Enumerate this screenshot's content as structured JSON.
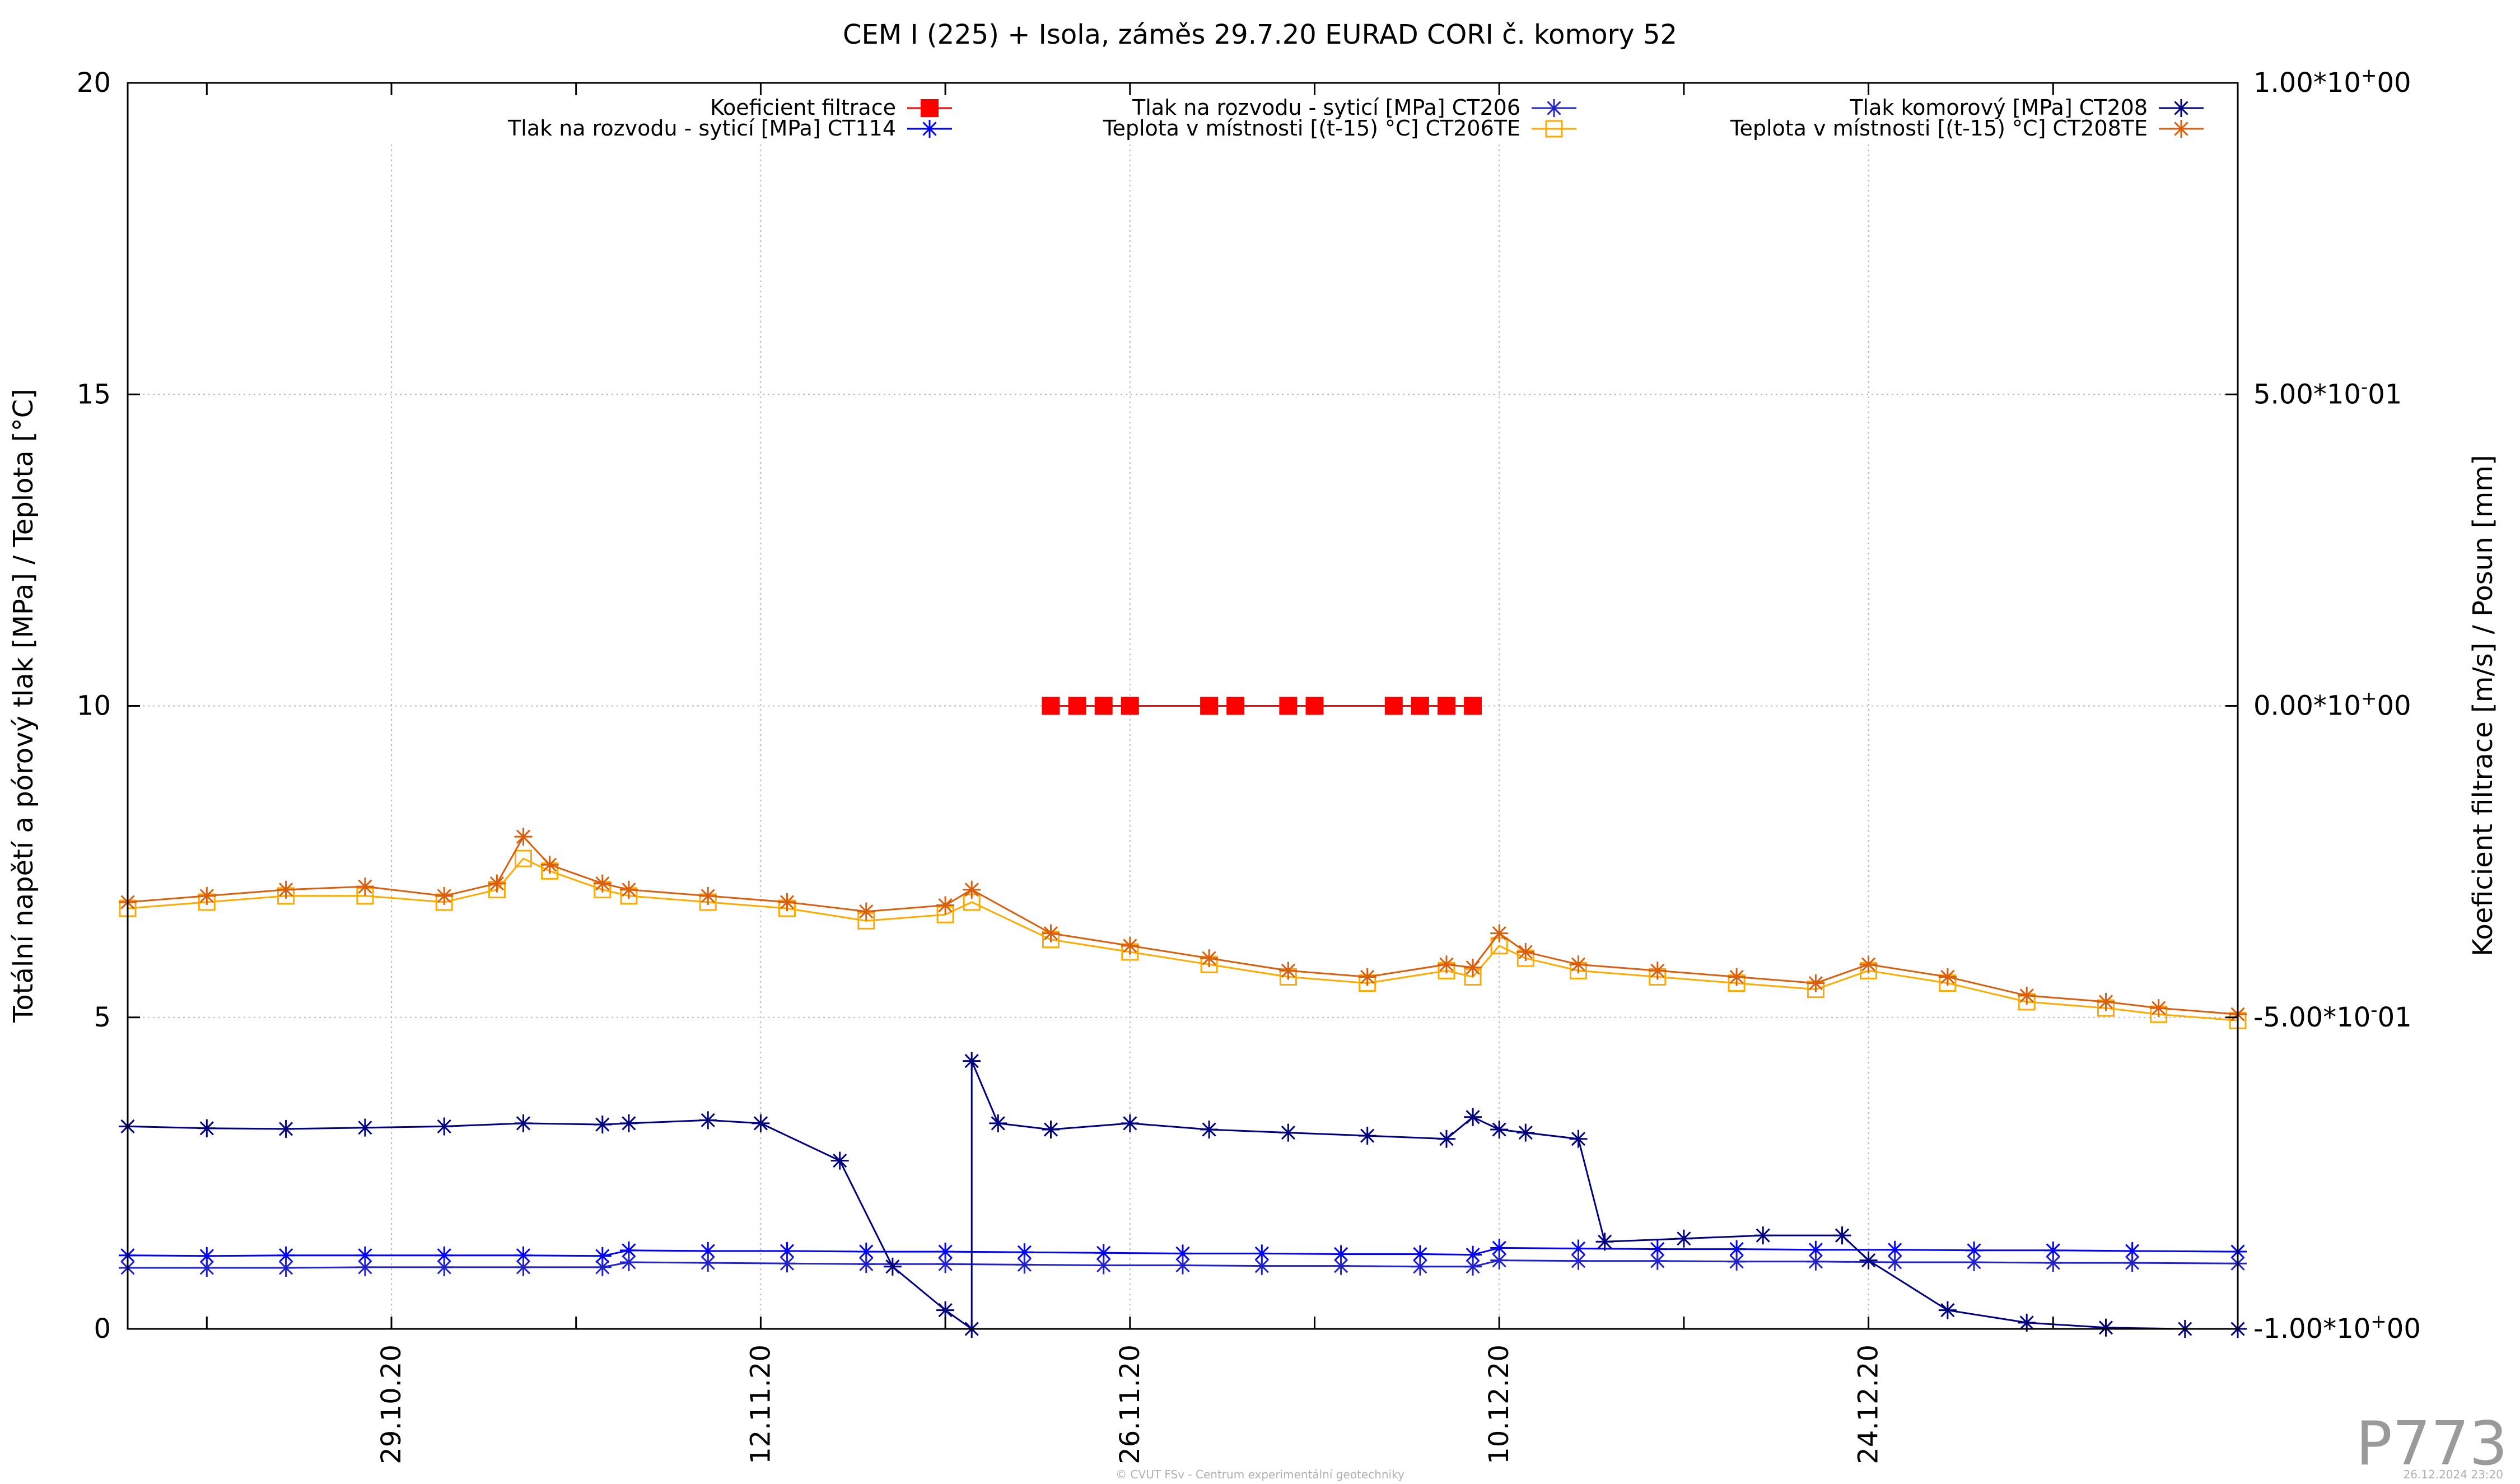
{
  "chart_data": {
    "type": "line",
    "title": "CEM I (225) + Isola, záměs 29.7.20 EURAD CORI č. komory 52",
    "ylabel": "Totální napětí a pórový tlak [MPa] / Teplota [°C]",
    "y2label": "Koeficient filtrace [m/s] / Posun [mm]",
    "ylim": [
      0,
      20
    ],
    "y2lim": [
      -1.0,
      1.0
    ],
    "xlim": [
      "2020-10-19",
      "2021-01-07"
    ],
    "grid": true,
    "legend_position": "top",
    "y_ticks": [
      "0",
      "5",
      "10",
      "15",
      "20"
    ],
    "y2_ticks": [
      {
        "mant": "-1.00*10",
        "exp": "+",
        "suf": "00"
      },
      {
        "mant": "-5.00*10",
        "exp": "-",
        "suf": "01"
      },
      {
        "mant": "0.00*10",
        "exp": "+",
        "suf": "00"
      },
      {
        "mant": "5.00*10",
        "exp": "-",
        "suf": "01"
      },
      {
        "mant": "1.00*10",
        "exp": "+",
        "suf": "00"
      }
    ],
    "x_ticks": [
      "29.10.20",
      "12.11.20",
      "26.11.20",
      "10.12.20",
      "24.12.20"
    ],
    "x_tick_dates": [
      "2020-10-29",
      "2020-11-12",
      "2020-11-26",
      "2020-12-10",
      "2020-12-24"
    ],
    "series": [
      {
        "name": "Koeficient filtrace",
        "axis": "y2",
        "color": "#ff0000",
        "marker": "square",
        "x": [
          "2020-11-23",
          "2020-11-24",
          "2020-11-25",
          "2020-11-26",
          "2020-11-29",
          "2020-11-30",
          "2020-12-02",
          "2020-12-03",
          "2020-12-06",
          "2020-12-07",
          "2020-12-08",
          "2020-12-09"
        ],
        "y": [
          0,
          0,
          0,
          0,
          0,
          0,
          0,
          0,
          0,
          0,
          0,
          0
        ]
      },
      {
        "name": "Tlak na rozvodu - syticí [MPa] CT114",
        "axis": "y",
        "color": "#0000ff",
        "marker": "star",
        "x": [
          "2020-10-19",
          "2020-10-22",
          "2020-10-25",
          "2020-10-28",
          "2020-10-31",
          "2020-11-03",
          "2020-11-06",
          "2020-11-07",
          "2020-11-10",
          "2020-11-13",
          "2020-11-16",
          "2020-11-19",
          "2020-11-22",
          "2020-11-25",
          "2020-11-28",
          "2020-12-01",
          "2020-12-04",
          "2020-12-07",
          "2020-12-09",
          "2020-12-10",
          "2020-12-13",
          "2020-12-16",
          "2020-12-19",
          "2020-12-22",
          "2020-12-25",
          "2020-12-28",
          "2020-12-31",
          "2021-01-03",
          "2021-01-07"
        ],
        "y": [
          1.18,
          1.17,
          1.18,
          1.18,
          1.18,
          1.18,
          1.17,
          1.26,
          1.25,
          1.25,
          1.24,
          1.24,
          1.23,
          1.22,
          1.21,
          1.21,
          1.2,
          1.2,
          1.19,
          1.3,
          1.29,
          1.28,
          1.28,
          1.27,
          1.27,
          1.26,
          1.26,
          1.25,
          1.24
        ]
      },
      {
        "name": "Tlak na rozvodu - syticí [MPa] CT206",
        "axis": "y",
        "color": "#2222cc",
        "marker": "star",
        "x": [
          "2020-10-19",
          "2020-10-22",
          "2020-10-25",
          "2020-10-28",
          "2020-10-31",
          "2020-11-03",
          "2020-11-06",
          "2020-11-07",
          "2020-11-10",
          "2020-11-13",
          "2020-11-16",
          "2020-11-19",
          "2020-11-22",
          "2020-11-25",
          "2020-11-28",
          "2020-12-01",
          "2020-12-04",
          "2020-12-07",
          "2020-12-09",
          "2020-12-10",
          "2020-12-13",
          "2020-12-16",
          "2020-12-19",
          "2020-12-22",
          "2020-12-25",
          "2020-12-28",
          "2020-12-31",
          "2021-01-03",
          "2021-01-07"
        ],
        "y": [
          0.98,
          0.98,
          0.98,
          0.99,
          0.99,
          0.99,
          0.99,
          1.07,
          1.06,
          1.05,
          1.04,
          1.04,
          1.03,
          1.02,
          1.02,
          1.01,
          1.01,
          1.0,
          1.0,
          1.1,
          1.09,
          1.09,
          1.08,
          1.08,
          1.07,
          1.07,
          1.06,
          1.06,
          1.05
        ]
      },
      {
        "name": "Teplota v místnosti [(t-15) °C] CT206TE",
        "axis": "y",
        "color": "#ffaa00",
        "marker": "square-open",
        "x": [
          "2020-10-19",
          "2020-10-22",
          "2020-10-25",
          "2020-10-28",
          "2020-10-31",
          "2020-11-02",
          "2020-11-03",
          "2020-11-04",
          "2020-11-06",
          "2020-11-07",
          "2020-11-10",
          "2020-11-13",
          "2020-11-16",
          "2020-11-19",
          "2020-11-20",
          "2020-11-23",
          "2020-11-26",
          "2020-11-29",
          "2020-12-02",
          "2020-12-05",
          "2020-12-08",
          "2020-12-09",
          "2020-12-10",
          "2020-12-11",
          "2020-12-13",
          "2020-12-16",
          "2020-12-19",
          "2020-12-22",
          "2020-12-24",
          "2020-12-27",
          "2020-12-30",
          "2021-01-02",
          "2021-01-04",
          "2021-01-07"
        ],
        "y": [
          6.75,
          6.85,
          6.95,
          6.95,
          6.85,
          7.05,
          7.55,
          7.35,
          7.05,
          6.95,
          6.85,
          6.75,
          6.55,
          6.65,
          6.85,
          6.25,
          6.05,
          5.85,
          5.65,
          5.55,
          5.75,
          5.65,
          6.15,
          5.95,
          5.75,
          5.65,
          5.55,
          5.45,
          5.75,
          5.55,
          5.25,
          5.15,
          5.05,
          4.95
        ]
      },
      {
        "name": "Tlak komorový [MPa] CT208",
        "axis": "y",
        "color": "#000080",
        "marker": "star",
        "x": [
          "2020-10-19",
          "2020-10-22",
          "2020-10-25",
          "2020-10-28",
          "2020-10-31",
          "2020-11-03",
          "2020-11-06",
          "2020-11-07",
          "2020-11-10",
          "2020-11-12",
          "2020-11-15",
          "2020-11-17",
          "2020-11-19",
          "2020-11-20",
          "2020-11-20",
          "2020-11-21",
          "2020-11-23",
          "2020-11-26",
          "2020-11-29",
          "2020-12-02",
          "2020-12-05",
          "2020-12-08",
          "2020-12-09",
          "2020-12-10",
          "2020-12-11",
          "2020-12-13",
          "2020-12-14",
          "2020-12-17",
          "2020-12-20",
          "2020-12-23",
          "2020-12-24",
          "2020-12-27",
          "2020-12-30",
          "2021-01-02",
          "2021-01-05",
          "2021-01-07"
        ],
        "y": [
          3.25,
          3.22,
          3.21,
          3.23,
          3.25,
          3.3,
          3.28,
          3.3,
          3.35,
          3.3,
          2.7,
          1.0,
          0.3,
          0.0,
          4.3,
          3.3,
          3.2,
          3.3,
          3.2,
          3.15,
          3.1,
          3.05,
          3.4,
          3.2,
          3.15,
          3.05,
          1.4,
          1.45,
          1.5,
          1.5,
          1.1,
          0.3,
          0.1,
          0.02,
          0.0,
          0.0
        ]
      },
      {
        "name": "Teplota v místnosti [(t-15) °C] CT208TE",
        "axis": "y",
        "color": "#d95f0e",
        "marker": "star",
        "x": [
          "2020-10-19",
          "2020-10-22",
          "2020-10-25",
          "2020-10-28",
          "2020-10-31",
          "2020-11-02",
          "2020-11-03",
          "2020-11-04",
          "2020-11-06",
          "2020-11-07",
          "2020-11-10",
          "2020-11-13",
          "2020-11-16",
          "2020-11-19",
          "2020-11-20",
          "2020-11-23",
          "2020-11-26",
          "2020-11-29",
          "2020-12-02",
          "2020-12-05",
          "2020-12-08",
          "2020-12-09",
          "2020-12-10",
          "2020-12-11",
          "2020-12-13",
          "2020-12-16",
          "2020-12-19",
          "2020-12-22",
          "2020-12-24",
          "2020-12-27",
          "2020-12-30",
          "2021-01-02",
          "2021-01-04",
          "2021-01-07"
        ],
        "y": [
          6.85,
          6.95,
          7.05,
          7.1,
          6.95,
          7.15,
          7.9,
          7.45,
          7.15,
          7.05,
          6.95,
          6.85,
          6.7,
          6.8,
          7.05,
          6.35,
          6.15,
          5.95,
          5.75,
          5.65,
          5.85,
          5.8,
          6.35,
          6.05,
          5.85,
          5.75,
          5.65,
          5.55,
          5.85,
          5.65,
          5.35,
          5.25,
          5.15,
          5.05
        ]
      }
    ]
  },
  "page": {
    "badge": "P773",
    "footer_left": "© CVUT FSv - Centrum experimentální geotechniky",
    "footer_right": "26.12.2024 23:20"
  }
}
